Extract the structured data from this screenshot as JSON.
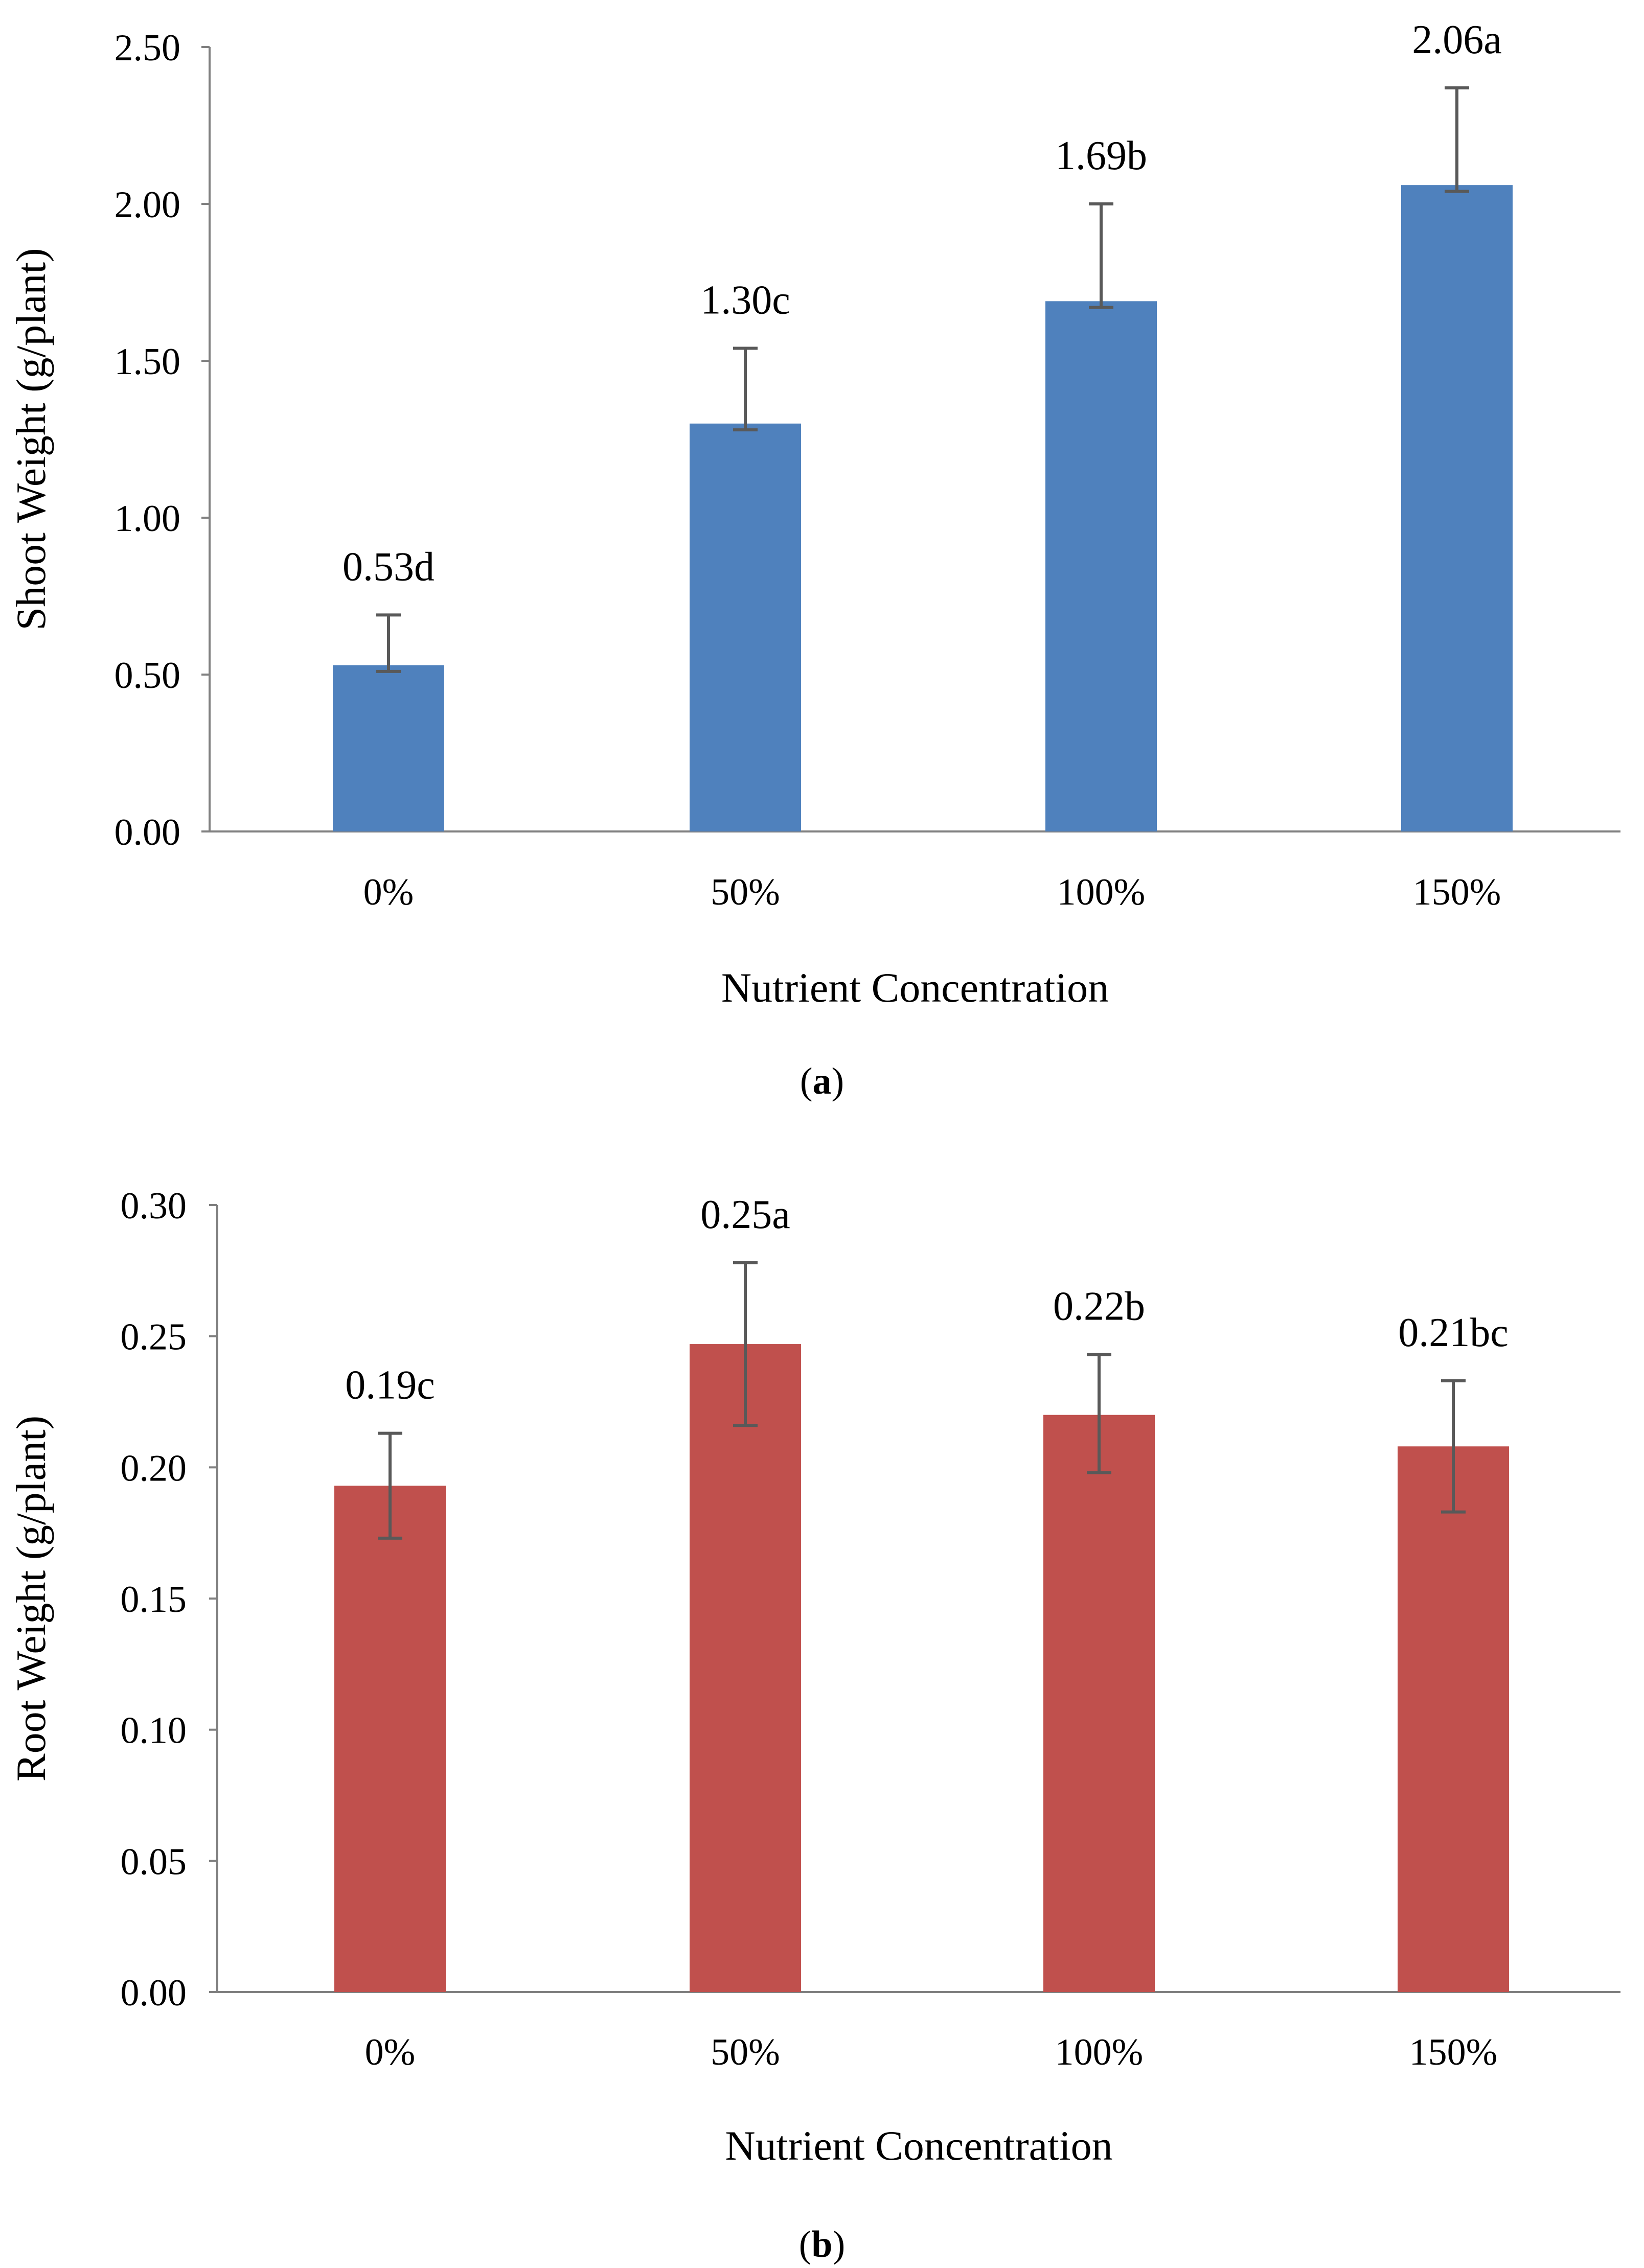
{
  "chart_data": [
    {
      "type": "bar",
      "panel_label": "a",
      "categories": [
        "0%",
        "50%",
        "100%",
        "150%"
      ],
      "values": [
        0.53,
        1.3,
        1.69,
        2.06
      ],
      "error_plus": [
        0.16,
        0.24,
        0.31,
        0.31
      ],
      "error_minus": [
        0.02,
        0.02,
        0.02,
        0.02
      ],
      "bar_labels": [
        "0.53d",
        "1.30c",
        "1.69b",
        "2.06a"
      ],
      "xlabel": "Nutrient Concentration",
      "ylabel": "Shoot Weight (g/plant)",
      "ylim": [
        0,
        2.5
      ],
      "yticks": [
        "0.00",
        "0.50",
        "1.00",
        "1.50",
        "2.00",
        "2.50"
      ],
      "color": "#4f81bd",
      "grid": false,
      "legend": "none"
    },
    {
      "type": "bar",
      "panel_label": "b",
      "categories": [
        "0%",
        "50%",
        "100%",
        "150%"
      ],
      "values": [
        0.193,
        0.247,
        0.22,
        0.208
      ],
      "error_plus": [
        0.02,
        0.031,
        0.023,
        0.025
      ],
      "error_minus": [
        0.02,
        0.031,
        0.022,
        0.025
      ],
      "bar_labels": [
        "0.19c",
        "0.25a",
        "0.22b",
        "0.21bc"
      ],
      "xlabel": "Nutrient Concentration",
      "ylabel": "Root Weight (g/plant)",
      "ylim": [
        0,
        0.3
      ],
      "yticks": [
        "0.00",
        "0.05",
        "0.10",
        "0.15",
        "0.20",
        "0.25",
        "0.30"
      ],
      "color": "#c0504d",
      "grid": false,
      "legend": "none"
    }
  ]
}
